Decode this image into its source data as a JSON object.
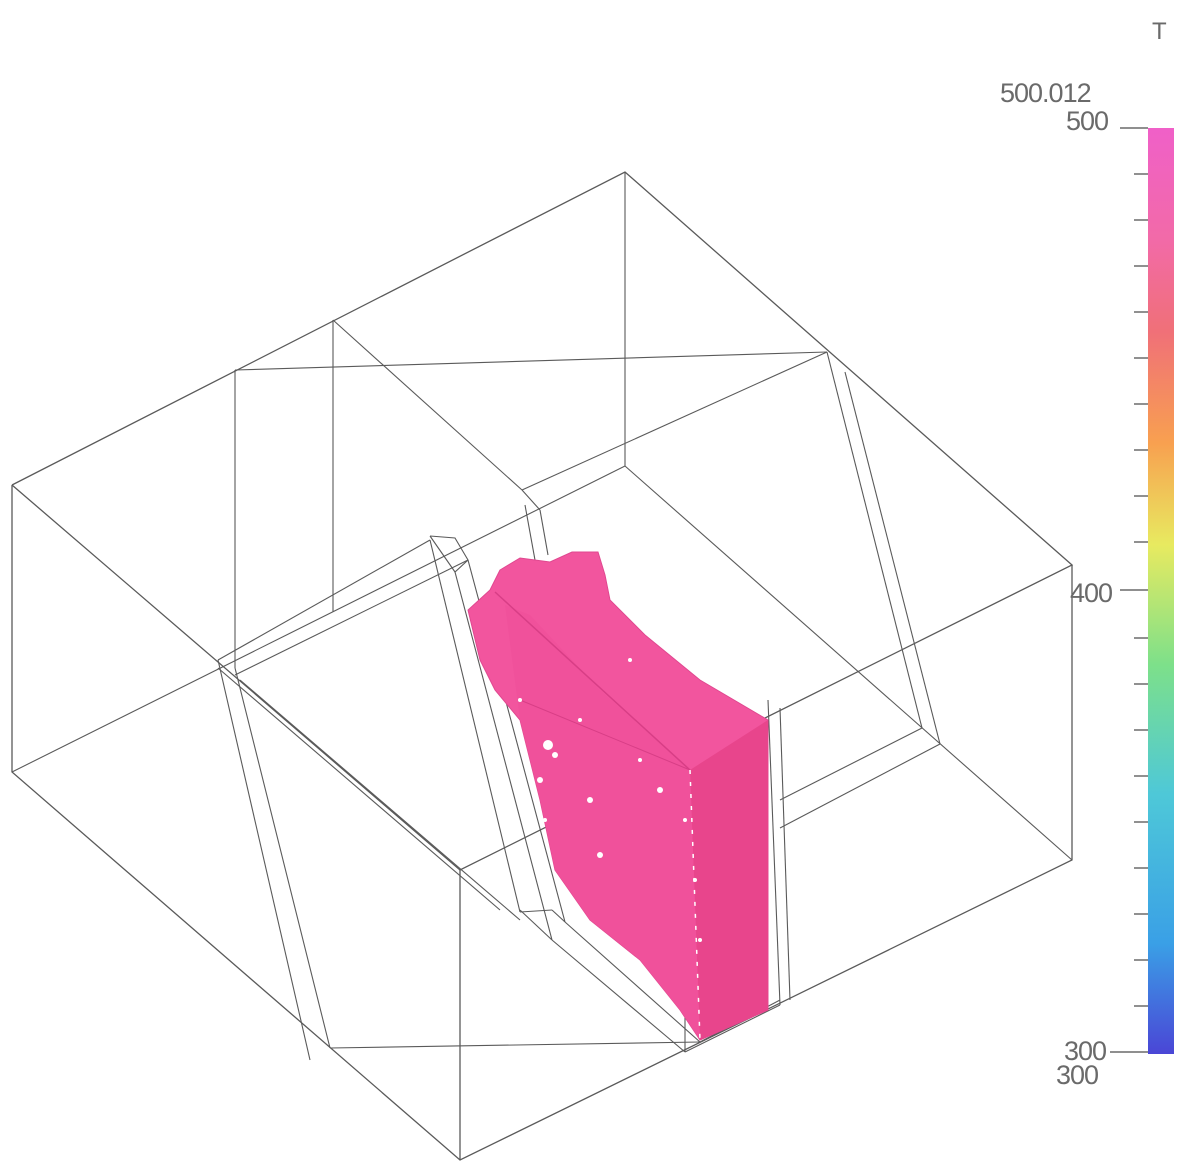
{
  "variable_label": "T",
  "colorbar": {
    "max_value_label": "500.012",
    "min_value_label": "300",
    "tick_labels": {
      "top": "500",
      "middle": "400",
      "bottom": "300"
    },
    "range": [
      300,
      500
    ],
    "colors": [
      "#4a46d6",
      "#3aa0e6",
      "#4ec8d8",
      "#7de08a",
      "#e8ea60",
      "#f8a050",
      "#f07078",
      "#f26aa8",
      "#f060c8"
    ]
  },
  "isosurface": {
    "color": "#f2559e",
    "shade": "#e8458c"
  },
  "wireframe_color": "#5a5a5a"
}
